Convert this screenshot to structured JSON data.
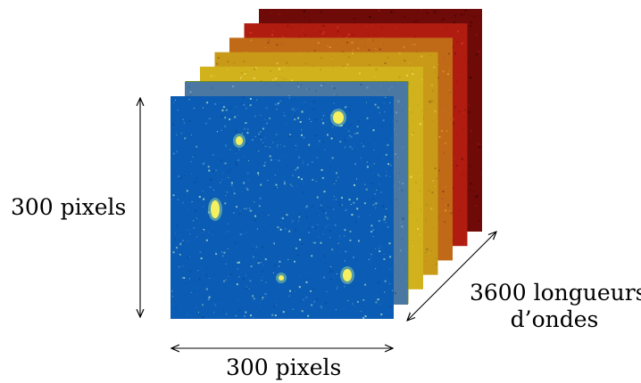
{
  "labels": {
    "height": "300 pixels",
    "width": "300 pixels",
    "depth_line1": "3600 longueurs",
    "depth_line2": "d’ondes"
  },
  "layers": [
    {
      "name": "layer-dark-red",
      "base": "#6e0a08",
      "speckle": [
        "#3a0403",
        "#8e1410",
        "#520605"
      ]
    },
    {
      "name": "layer-red",
      "base": "#b01c10",
      "speckle": [
        "#7a0e08",
        "#d23a20",
        "#921408"
      ]
    },
    {
      "name": "layer-orange",
      "base": "#c06a18",
      "speckle": [
        "#8e4410",
        "#d99a2a",
        "#a85a12"
      ]
    },
    {
      "name": "layer-gold",
      "base": "#c89a18",
      "speckle": [
        "#9a7010",
        "#e0c040",
        "#b08810"
      ]
    },
    {
      "name": "layer-yellow",
      "base": "#d2b21c",
      "speckle": [
        "#a88c12",
        "#ecd860",
        "#bca014"
      ]
    },
    {
      "name": "layer-olive-green",
      "base": "#6e8a1a",
      "speckle": [
        "#4a6210",
        "#9ab432",
        "#5c7614"
      ]
    },
    {
      "name": "layer-steel-blue",
      "base": "#4a78a2",
      "speckle": [
        "#2e5a86",
        "#7aa2c2",
        "#3c6a94"
      ]
    },
    {
      "name": "layer-blue-front",
      "base": "#0a5cb4",
      "speckle": [
        "#0a4e9c",
        "#3c8ad0",
        "#0c66c4"
      ]
    }
  ],
  "colors": {
    "arrow": "#000000",
    "bright_spot": "#f4f060",
    "spot_halo": "#8fd0a0",
    "speckle_light": "#9ad0c8"
  }
}
